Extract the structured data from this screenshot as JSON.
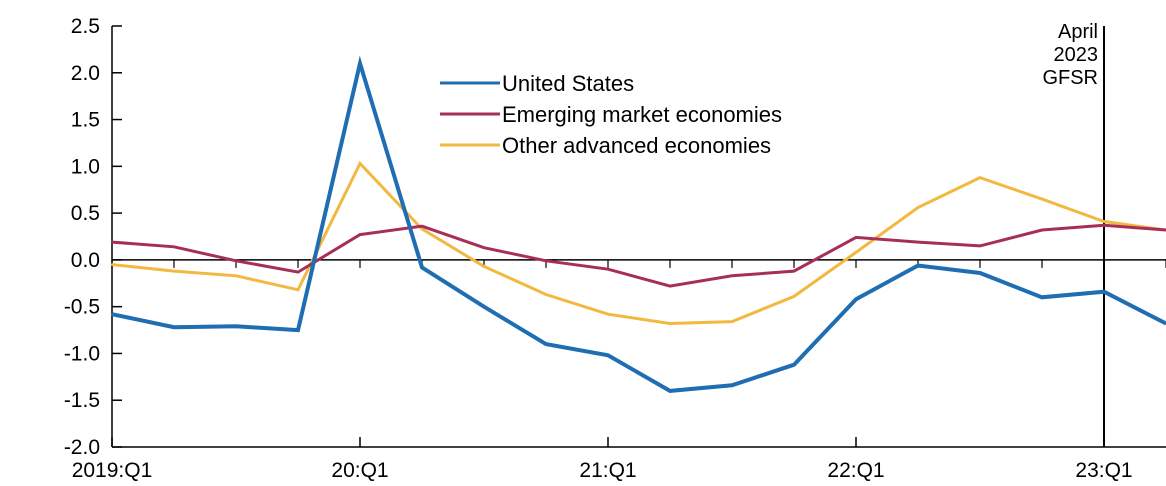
{
  "chart_data": {
    "type": "line",
    "title": "",
    "xlabel": "",
    "ylabel": "",
    "ylim": [
      -2.0,
      2.5
    ],
    "yticks": [
      2.5,
      2.0,
      1.5,
      1.0,
      0.5,
      0.0,
      -0.5,
      -1.0,
      -1.5,
      -2.0
    ],
    "ytick_labels": [
      "2.5",
      "2.0",
      "1.5",
      "1.0",
      "0.5",
      "0.0",
      "-0.5",
      "-1.0",
      "-1.5",
      "-2.0"
    ],
    "x": [
      "2019:Q1",
      "2019:Q2",
      "2019:Q3",
      "2019:Q4",
      "2020:Q1",
      "2020:Q2",
      "2020:Q3",
      "2020:Q4",
      "2021:Q1",
      "2021:Q2",
      "2021:Q3",
      "2021:Q4",
      "2022:Q1",
      "2022:Q2",
      "2022:Q3",
      "2022:Q4",
      "2023:Q1",
      "2023:Q2"
    ],
    "xtick_labels": [
      {
        "index": 0,
        "label": "2019:Q1"
      },
      {
        "index": 4,
        "label": "20:Q1"
      },
      {
        "index": 8,
        "label": "21:Q1"
      },
      {
        "index": 12,
        "label": "22:Q1"
      },
      {
        "index": 16,
        "label": "23:Q1"
      }
    ],
    "zero_line": true,
    "grid": false,
    "legend_position": "top-center",
    "series": [
      {
        "name": "United States",
        "color": "#1f6db2",
        "emphasis": "thick",
        "values": [
          -0.58,
          -0.72,
          -0.71,
          -0.75,
          2.1,
          -0.08,
          -0.5,
          -0.9,
          -1.02,
          -1.4,
          -1.34,
          -1.12,
          -0.42,
          -0.06,
          -0.14,
          -0.4,
          -0.34,
          -0.68
        ]
      },
      {
        "name": "Emerging market economies",
        "color": "#a82e5a",
        "values": [
          0.19,
          0.14,
          -0.01,
          -0.13,
          0.27,
          0.36,
          0.13,
          -0.01,
          -0.1,
          -0.28,
          -0.17,
          -0.12,
          0.24,
          0.19,
          0.15,
          0.32,
          0.37,
          0.32
        ]
      },
      {
        "name": "Other advanced economies",
        "color": "#f2b83f",
        "values": [
          -0.05,
          -0.12,
          -0.17,
          -0.32,
          1.03,
          0.33,
          -0.07,
          -0.37,
          -0.58,
          -0.68,
          -0.66,
          -0.39,
          0.08,
          0.56,
          0.88,
          0.65,
          0.41,
          0.32
        ]
      }
    ],
    "vertical_marker": {
      "x_index": 16,
      "label_lines": [
        "April",
        "2023",
        "GFSR"
      ]
    }
  }
}
